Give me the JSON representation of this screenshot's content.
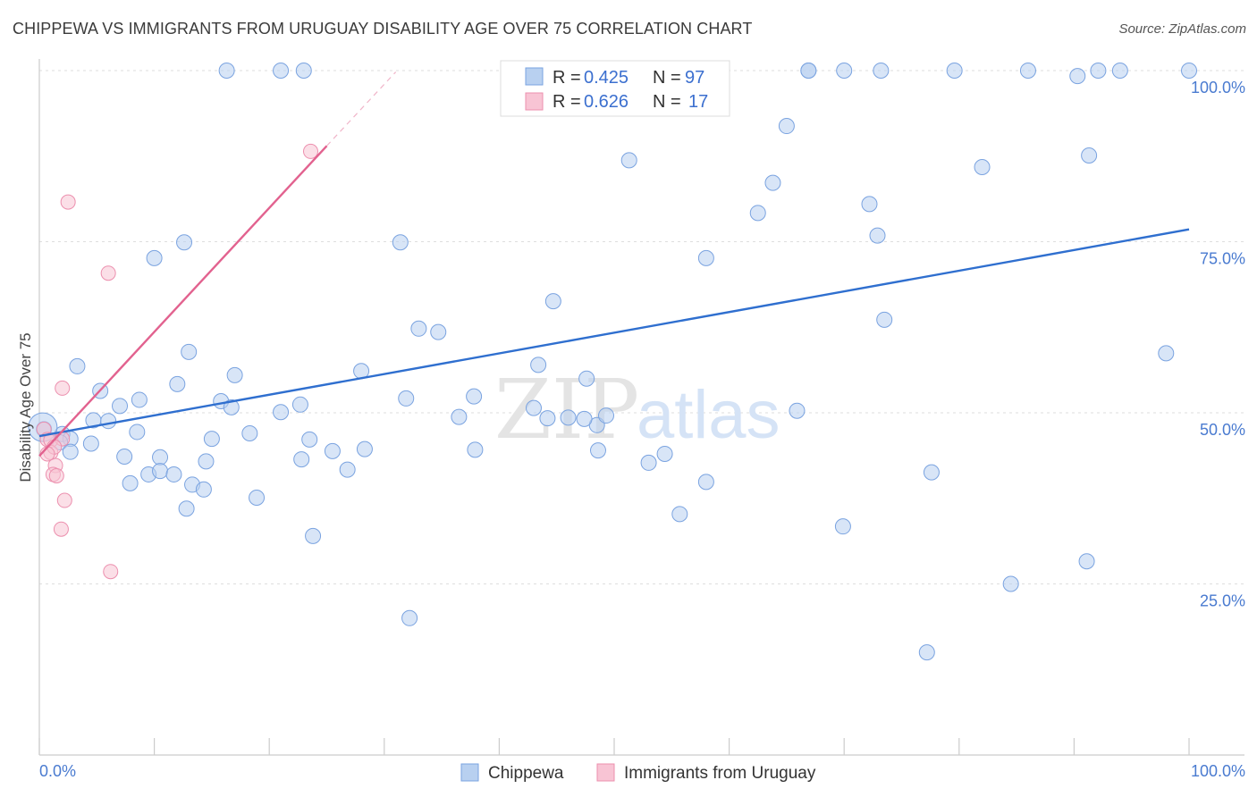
{
  "title": "CHIPPEWA VS IMMIGRANTS FROM URUGUAY DISABILITY AGE OVER 75 CORRELATION CHART",
  "source": "Source: ZipAtlas.com",
  "watermark": {
    "zip": "ZIP",
    "atlas": "atlas"
  },
  "chart_data": {
    "type": "scatter",
    "title": "CHIPPEWA VS IMMIGRANTS FROM URUGUAY DISABILITY AGE OVER 75 CORRELATION CHART",
    "xlabel": "",
    "ylabel": "Disability Age Over 75",
    "xlim": [
      0,
      100
    ],
    "ylim": [
      0,
      100
    ],
    "x_tick_labels": [
      "0.0%",
      "100.0%"
    ],
    "y_ticks": [
      25,
      50,
      75,
      100
    ],
    "y_tick_labels": [
      "25.0%",
      "50.0%",
      "75.0%",
      "100.0%"
    ],
    "grid": "horizontal dashed",
    "legend_position": "top-center",
    "colors": {
      "chippewa_fill": "#b8d0f0",
      "chippewa_stroke": "#7aa3e0",
      "chippewa_line": "#2f6fcf",
      "uruguay_fill": "#f8c4d4",
      "uruguay_stroke": "#ec8fae",
      "uruguay_line": "#e2628f"
    },
    "legend": [
      {
        "r_label": "R = ",
        "r_value": "0.425",
        "n_label": "N = ",
        "n_value": "97"
      },
      {
        "r_label": "R = ",
        "r_value": "0.626",
        "n_label": "N = ",
        "n_value": "17"
      }
    ],
    "series": [
      {
        "name": "Chippewa",
        "trend": {
          "x": [
            0,
            100
          ],
          "y": [
            46.6,
            76.8
          ]
        },
        "points": [
          [
            16.3,
            100
          ],
          [
            21.0,
            100
          ],
          [
            23.0,
            100
          ],
          [
            66.9,
            100
          ],
          [
            66.9,
            100
          ],
          [
            70.0,
            100
          ],
          [
            73.2,
            100
          ],
          [
            79.6,
            100
          ],
          [
            86.0,
            100
          ],
          [
            90.3,
            99.2
          ],
          [
            92.1,
            100
          ],
          [
            94.0,
            100
          ],
          [
            100,
            100
          ],
          [
            73.5,
            63.6
          ],
          [
            91.3,
            87.6
          ],
          [
            82.0,
            85.9
          ],
          [
            65.0,
            91.9
          ],
          [
            72.2,
            80.5
          ],
          [
            62.5,
            79.2
          ],
          [
            72.9,
            75.9
          ],
          [
            51.3,
            86.9
          ],
          [
            58.0,
            72.6
          ],
          [
            31.4,
            74.9
          ],
          [
            63.8,
            83.6
          ],
          [
            12.6,
            74.9
          ],
          [
            10.0,
            72.6
          ],
          [
            44.7,
            66.3
          ],
          [
            33.0,
            62.3
          ],
          [
            34.7,
            61.8
          ],
          [
            13.0,
            58.9
          ],
          [
            3.3,
            56.8
          ],
          [
            17.0,
            55.5
          ],
          [
            28.0,
            56.1
          ],
          [
            43.4,
            57.0
          ],
          [
            47.6,
            55.0
          ],
          [
            98.0,
            58.7
          ],
          [
            5.3,
            53.2
          ],
          [
            12.0,
            54.2
          ],
          [
            8.7,
            51.9
          ],
          [
            7.0,
            51.0
          ],
          [
            15.8,
            51.7
          ],
          [
            22.7,
            51.2
          ],
          [
            31.9,
            52.1
          ],
          [
            37.8,
            52.4
          ],
          [
            21.0,
            50.1
          ],
          [
            16.7,
            50.8
          ],
          [
            43.0,
            50.7
          ],
          [
            4.7,
            48.9
          ],
          [
            6.0,
            48.8
          ],
          [
            0.4,
            47.6
          ],
          [
            2.0,
            46.9
          ],
          [
            2.7,
            46.2
          ],
          [
            8.5,
            47.2
          ],
          [
            15.0,
            46.2
          ],
          [
            18.3,
            47.0
          ],
          [
            23.5,
            46.1
          ],
          [
            25.5,
            44.4
          ],
          [
            28.3,
            44.7
          ],
          [
            36.5,
            49.4
          ],
          [
            44.2,
            49.2
          ],
          [
            46.0,
            49.3
          ],
          [
            48.5,
            48.2
          ],
          [
            49.3,
            49.6
          ],
          [
            47.4,
            49.1
          ],
          [
            1.8,
            45.7
          ],
          [
            4.5,
            45.5
          ],
          [
            7.4,
            43.6
          ],
          [
            10.5,
            43.5
          ],
          [
            14.5,
            42.9
          ],
          [
            22.8,
            43.2
          ],
          [
            37.9,
            44.6
          ],
          [
            48.6,
            44.5
          ],
          [
            53.0,
            42.7
          ],
          [
            54.4,
            44.0
          ],
          [
            65.9,
            50.3
          ],
          [
            2.7,
            44.3
          ],
          [
            9.5,
            41.0
          ],
          [
            10.5,
            41.5
          ],
          [
            11.7,
            41.0
          ],
          [
            13.3,
            39.5
          ],
          [
            14.3,
            38.8
          ],
          [
            7.9,
            39.7
          ],
          [
            12.8,
            36.0
          ],
          [
            18.9,
            37.6
          ],
          [
            26.8,
            41.7
          ],
          [
            58.0,
            39.9
          ],
          [
            55.7,
            35.2
          ],
          [
            77.6,
            41.3
          ],
          [
            69.9,
            33.4
          ],
          [
            23.8,
            32.0
          ],
          [
            91.1,
            28.3
          ],
          [
            84.5,
            25.0
          ],
          [
            32.2,
            20.0
          ],
          [
            77.2,
            15.0
          ],
          [
            0.3,
            47.9
          ]
        ]
      },
      {
        "name": "Immigrants from Uruguay",
        "trend": {
          "x": [
            0,
            25
          ],
          "y": [
            43.7,
            89.0
          ]
        },
        "trend_dashed": {
          "x": [
            25,
            31
          ],
          "y": [
            89.0,
            99.8
          ]
        },
        "points": [
          [
            0.4,
            47.6
          ],
          [
            0.7,
            46.1
          ],
          [
            1.0,
            46.0
          ],
          [
            2.0,
            46.2
          ],
          [
            1.0,
            44.2
          ],
          [
            1.4,
            42.3
          ],
          [
            1.2,
            41.0
          ],
          [
            1.5,
            40.8
          ],
          [
            2.2,
            37.2
          ],
          [
            1.9,
            33.0
          ],
          [
            6.2,
            26.8
          ],
          [
            2.0,
            53.6
          ],
          [
            6.0,
            70.4
          ],
          [
            2.5,
            80.8
          ],
          [
            23.6,
            88.2
          ],
          [
            1.3,
            45.0
          ],
          [
            0.7,
            44.0
          ]
        ]
      }
    ]
  },
  "bottom_legend": [
    {
      "label": "Chippewa"
    },
    {
      "label": "Immigrants from Uruguay"
    }
  ]
}
